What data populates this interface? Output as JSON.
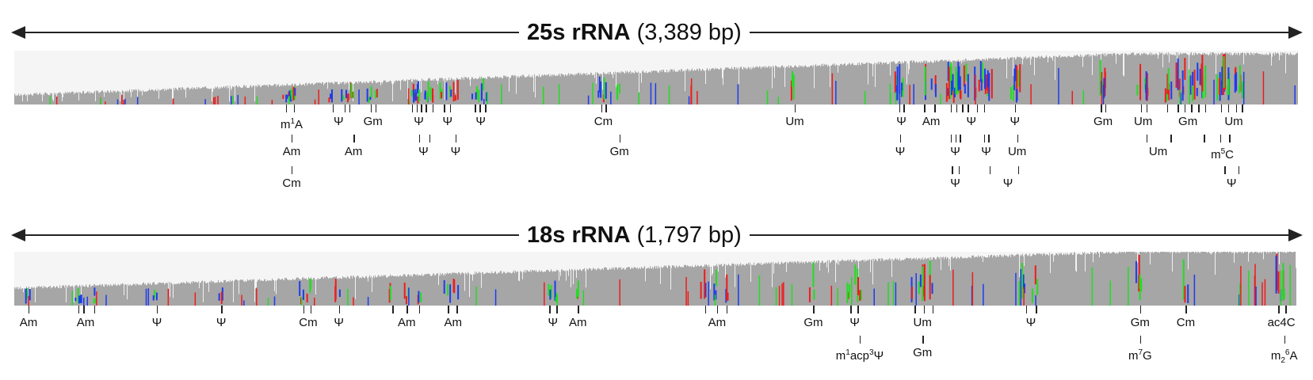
{
  "panels": [
    {
      "id": "25s",
      "title_bold": "25s rRNA",
      "title_rest": "(3,389 bp)",
      "length": 3389,
      "modifications": [
        {
          "label": "m1A",
          "pos": 1210,
          "ticks": [
            1185,
            1220
          ],
          "row": 0,
          "html": "m<sup>1</sup>A"
        },
        {
          "label": "Ψ",
          "pos": 1415,
          "ticks": [
            1390,
            1440,
            1462
          ],
          "row": 0
        },
        {
          "label": "Gm",
          "pos": 1565,
          "ticks": [
            1555,
            1575
          ],
          "row": 0
        },
        {
          "label": "Ψ",
          "pos": 1765,
          "ticks": [
            1735,
            1755,
            1775,
            1795,
            1825
          ],
          "row": 0
        },
        {
          "label": "Ψ",
          "pos": 1890,
          "ticks": [
            1875,
            1900
          ],
          "row": 0
        },
        {
          "label": "Ψ",
          "pos": 2035,
          "ticks": [
            2010,
            2030,
            2055
          ],
          "row": 0
        },
        {
          "label": "Cm",
          "pos": 2570,
          "ticks": [
            2560,
            2580
          ],
          "row": 0
        },
        {
          "label": "Um",
          "pos": 3405,
          "ticks": [
            3405
          ],
          "row": 0
        },
        {
          "label": "Ψ",
          "pos": 3870,
          "ticks": [
            3860,
            3880
          ],
          "row": 0
        },
        {
          "label": "Am",
          "pos": 4000,
          "ticks": [
            3970,
            4015
          ],
          "row": 0
        },
        {
          "label": "Ψ",
          "pos": 4175,
          "ticks": [
            4085,
            4110,
            4135,
            4160,
            4200,
            4230
          ],
          "row": 0
        },
        {
          "label": "Ψ",
          "pos": 4365,
          "ticks": [
            4365
          ],
          "row": 0
        },
        {
          "label": "Gm",
          "pos": 4750,
          "ticks": [
            4740,
            4760
          ],
          "row": 0
        },
        {
          "label": "Um",
          "pos": 4925,
          "ticks": [
            4915,
            4940
          ],
          "row": 0
        },
        {
          "label": "Gm",
          "pos": 5120,
          "ticks": [
            5030,
            5075,
            5105,
            5135,
            5165,
            5195
          ],
          "row": 0
        },
        {
          "label": "Um",
          "pos": 5320,
          "ticks": [
            5265,
            5295,
            5330,
            5355
          ],
          "row": 0
        },
        {
          "label": "Am",
          "pos": 1210,
          "ticks": [
            1210
          ],
          "row": 1
        },
        {
          "label": "Am",
          "pos": 1480,
          "ticks": [
            1480
          ],
          "row": 1
        },
        {
          "label": "Ψ",
          "pos": 1785,
          "ticks": [
            1765,
            1810
          ],
          "row": 1
        },
        {
          "label": "Ψ",
          "pos": 1925,
          "ticks": [
            1925
          ],
          "row": 1
        },
        {
          "label": "Gm",
          "pos": 2640,
          "ticks": [
            2640
          ],
          "row": 1
        },
        {
          "label": "Ψ",
          "pos": 3865,
          "ticks": [
            3865
          ],
          "row": 1
        },
        {
          "label": "Ψ",
          "pos": 4105,
          "ticks": [
            4085,
            4105,
            4125
          ],
          "row": 1
        },
        {
          "label": "Ψ",
          "pos": 4240,
          "ticks": [
            4230,
            4250
          ],
          "row": 1
        },
        {
          "label": "Um",
          "pos": 4375,
          "ticks": [
            4375
          ],
          "row": 1
        },
        {
          "label": "Um",
          "pos": 4990,
          "ticks": [
            4940,
            5045
          ],
          "row": 1
        },
        {
          "label": "m5C",
          "pos": 5270,
          "ticks": [
            5190,
            5260,
            5300
          ],
          "row": 1,
          "html": "m<sup>5</sup>C"
        },
        {
          "label": "Ψ",
          "pos": 4105,
          "ticks": [
            4090,
            4120
          ],
          "row": 2
        },
        {
          "label": "Ψ",
          "pos": 4335,
          "ticks": [
            4255,
            4380
          ],
          "row": 2
        },
        {
          "label": "Ψ",
          "pos": 5310,
          "ticks": [
            5280,
            5340
          ],
          "row": 2
        },
        {
          "label": "Cm",
          "pos": 1210,
          "ticks": [
            1210
          ],
          "row": 2
        }
      ]
    },
    {
      "id": "18s",
      "title_bold": "18s rRNA",
      "title_rest": "(1,797 bp)",
      "length": 1797,
      "modifications": [
        {
          "label": "Am",
          "pos": 20,
          "ticks": [
            20
          ],
          "row": 0
        },
        {
          "label": "Am",
          "pos": 100,
          "ticks": [
            90,
            97,
            112
          ],
          "row": 0
        },
        {
          "label": "Ψ",
          "pos": 200,
          "ticks": [
            200
          ],
          "row": 0
        },
        {
          "label": "Ψ",
          "pos": 290,
          "ticks": [
            290
          ],
          "row": 0
        },
        {
          "label": "Cm",
          "pos": 412,
          "ticks": [
            405,
            415
          ],
          "row": 0
        },
        {
          "label": "Ψ",
          "pos": 455,
          "ticks": [
            455
          ],
          "row": 0
        },
        {
          "label": "Am",
          "pos": 550,
          "ticks": [
            530,
            550,
            567
          ],
          "row": 0
        },
        {
          "label": "Am",
          "pos": 615,
          "ticks": [
            608,
            620
          ],
          "row": 0
        },
        {
          "label": "Ψ",
          "pos": 755,
          "ticks": [
            750,
            760
          ],
          "row": 0
        },
        {
          "label": "Am",
          "pos": 790,
          "ticks": [
            790
          ],
          "row": 0
        },
        {
          "label": "Am",
          "pos": 985,
          "ticks": [
            968,
            985,
            998
          ],
          "row": 0
        },
        {
          "label": "Gm",
          "pos": 1120,
          "ticks": [
            1120
          ],
          "row": 0
        },
        {
          "label": "Ψ",
          "pos": 1178,
          "ticks": [
            1172,
            1182
          ],
          "row": 0
        },
        {
          "label": "Um",
          "pos": 1273,
          "ticks": [
            1262,
            1275,
            1287
          ],
          "row": 0
        },
        {
          "label": "Ψ",
          "pos": 1425,
          "ticks": [
            1418,
            1432
          ],
          "row": 0
        },
        {
          "label": "Gm",
          "pos": 1578,
          "ticks": [
            1578
          ],
          "row": 0
        },
        {
          "label": "Cm",
          "pos": 1642,
          "ticks": [
            1642
          ],
          "row": 0
        },
        {
          "label": "ac4C",
          "pos": 1776,
          "ticks": [
            1772,
            1782
          ],
          "row": 0
        },
        {
          "label": "m1acp3Ψ",
          "pos": 1185,
          "ticks": [
            1185
          ],
          "row": 1,
          "html": "m<sup>1</sup>acp<sup>3</sup>Ψ"
        },
        {
          "label": "Gm",
          "pos": 1273,
          "ticks": [
            1273
          ],
          "row": 1
        },
        {
          "label": "m7G",
          "pos": 1578,
          "ticks": [
            1578
          ],
          "row": 1,
          "html": "m<sup>7</sup>G"
        },
        {
          "label": "m26A",
          "pos": 1780,
          "ticks": [
            1780
          ],
          "row": 1,
          "html": "m<sub>2</sub><sup>6</sup>A"
        }
      ]
    }
  ],
  "colors": {
    "coverage": "#a6a6a6",
    "background": "#f5f5f5",
    "mismatch_red": "#ee1c1c",
    "mismatch_blue": "#1c3cee",
    "mismatch_green": "#22dd22",
    "line": "#222222"
  }
}
